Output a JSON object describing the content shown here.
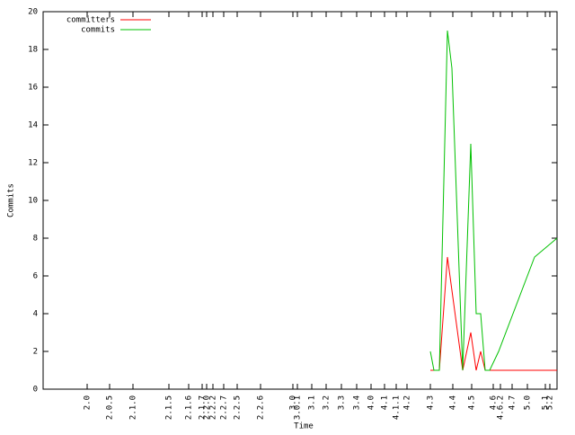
{
  "chart_data": {
    "type": "line",
    "xlabel": "Time",
    "ylabel": "Commits",
    "xlim": [
      0,
      572
    ],
    "ylim": [
      0,
      20
    ],
    "yticks": [
      0,
      2,
      4,
      6,
      8,
      10,
      12,
      14,
      16,
      18,
      20
    ],
    "xticks": [
      {
        "value": 49,
        "label": "2.0"
      },
      {
        "value": 74,
        "label": "2.0.5"
      },
      {
        "value": 100,
        "label": "2.1.0"
      },
      {
        "value": 140,
        "label": "2.1.5"
      },
      {
        "value": 162,
        "label": "2.1.6"
      },
      {
        "value": 177,
        "label": "2.1.7"
      },
      {
        "value": 182,
        "label": "2.2.0"
      },
      {
        "value": 189,
        "label": "2.2.2"
      },
      {
        "value": 201,
        "label": "2.2.7"
      },
      {
        "value": 216,
        "label": "2.2.5"
      },
      {
        "value": 242,
        "label": "2.2.6"
      },
      {
        "value": 278,
        "label": "3.0"
      },
      {
        "value": 283,
        "label": "3.0.1"
      },
      {
        "value": 299,
        "label": "3.1"
      },
      {
        "value": 315,
        "label": "3.2"
      },
      {
        "value": 332,
        "label": "3.3"
      },
      {
        "value": 349,
        "label": "3.4"
      },
      {
        "value": 365,
        "label": "4.0"
      },
      {
        "value": 380,
        "label": "4.1"
      },
      {
        "value": 393,
        "label": "4.1.1"
      },
      {
        "value": 405,
        "label": "4.2"
      },
      {
        "value": 431,
        "label": "4.3"
      },
      {
        "value": 456,
        "label": "4.4"
      },
      {
        "value": 477,
        "label": "4.5"
      },
      {
        "value": 501,
        "label": "4.6"
      },
      {
        "value": 509,
        "label": "4.6.2"
      },
      {
        "value": 522,
        "label": "4.7"
      },
      {
        "value": 539,
        "label": "5.0"
      },
      {
        "value": 559,
        "label": "5.1"
      },
      {
        "value": 564,
        "label": "5.2"
      }
    ],
    "series": [
      {
        "name": "committers",
        "color": "#ff0000",
        "x": [
          431,
          441,
          450,
          467,
          476,
          482,
          487,
          492,
          572
        ],
        "values": [
          1,
          1,
          7,
          1,
          3,
          1,
          2,
          1,
          1
        ]
      },
      {
        "name": "commits",
        "color": "#00c000",
        "x": [
          431,
          435,
          441,
          450,
          455,
          467,
          476,
          482,
          487,
          492,
          497,
          507,
          547,
          572
        ],
        "values": [
          2,
          1,
          1,
          19,
          17,
          1,
          13,
          4,
          4,
          1,
          1,
          2,
          7,
          8
        ]
      }
    ]
  }
}
